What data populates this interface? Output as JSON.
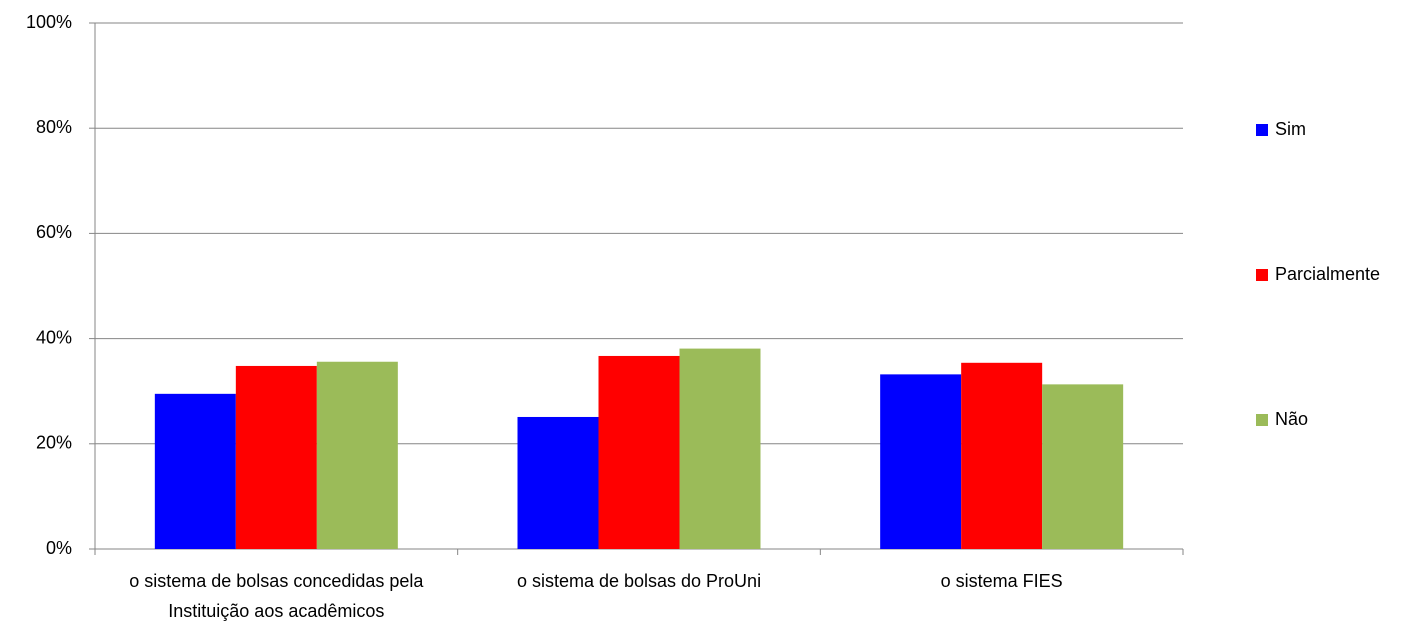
{
  "chart_data": {
    "type": "bar",
    "categories": [
      "o sistema de bolsas concedidas pela Instituição aos acadêmicos",
      "o sistema de bolsas do ProUni",
      "o sistema FIES"
    ],
    "series": [
      {
        "name": "Sim",
        "color": "#0000ff",
        "values": [
          29.5,
          25.1,
          33.2
        ]
      },
      {
        "name": "Parcialmente",
        "color": "#ff0000",
        "values": [
          34.8,
          36.7,
          35.4
        ]
      },
      {
        "name": "Não",
        "color": "#9bbb59",
        "values": [
          35.6,
          38.1,
          31.3
        ]
      }
    ],
    "ylim": [
      0,
      100
    ],
    "yticks": [
      {
        "value": 0,
        "label": "0%"
      },
      {
        "value": 20,
        "label": "20%"
      },
      {
        "value": 40,
        "label": "40%"
      },
      {
        "value": 60,
        "label": "60%"
      },
      {
        "value": 80,
        "label": "80%"
      },
      {
        "value": 100,
        "label": "100%"
      }
    ],
    "grid": true,
    "legend": "right"
  }
}
